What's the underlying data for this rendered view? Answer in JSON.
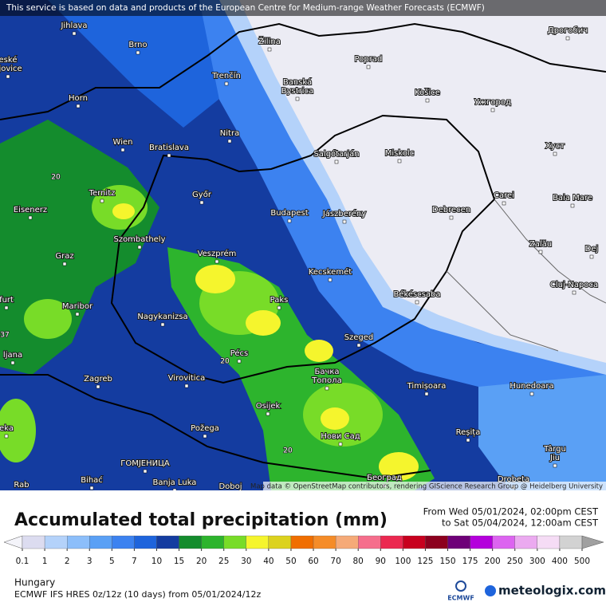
{
  "banner": "This service is based on data and products of the European Centre for Medium-range Weather Forecasts (ECMWF)",
  "attribution": "Map data © OpenStreetMap contributors, rendering GIScience Research Group @ Heidelberg University",
  "cities": [
    "Jihlava",
    "Brno",
    "Žilina",
    "Poprad",
    "Дрогобич",
    [
      "eské",
      "ějovice"
    ],
    "Trenčín",
    [
      "Banská",
      "Bystrica"
    ],
    "Košice",
    "Ужгород",
    "Horn",
    "Nitra",
    "Wien",
    "Bratislava",
    "Salgótarján",
    "Miskolc",
    "Хуст",
    "Ternitz",
    "Győr",
    "Budapest",
    "Jászberény",
    "Debrecen",
    "Carei",
    "Baia Mare",
    "Eisenerz",
    "Szombathely",
    "Zalău",
    "Graz",
    "Veszprém",
    "Kecskemét",
    "Dej",
    "Cluj-Napoca",
    "Paks",
    "Békéscsaba",
    "Maribor",
    "Nagykanizsa",
    "furt",
    "Szeged",
    "Pécs",
    "ljana",
    [
      "Бачка",
      "Топола"
    ],
    "Zagreb",
    "Virovitica",
    "Timișoara",
    "Hunedoara",
    "Osijek",
    "Požega",
    "Reșița",
    "Нови Сад",
    [
      "Târgu",
      "Jiu"
    ],
    "eka",
    "ГОМЈЕНИЦА",
    "Bihać",
    "Banja Luka",
    "Doboj",
    "Београд",
    "Drobeta",
    "Rab"
  ],
  "contour_labels": [
    "20",
    "20",
    "20",
    "37"
  ],
  "legend": {
    "title": "Accumulated total precipitation (mm)",
    "period": [
      "From Wed 05/01/2024, 02:00pm CEST",
      "to Sat 05/04/2024, 12:00am CEST"
    ],
    "ticks": [
      0.1,
      1,
      2,
      3,
      5,
      7,
      10,
      15,
      20,
      25,
      30,
      40,
      50,
      60,
      70,
      80,
      90,
      100,
      125,
      150,
      175,
      200,
      250,
      300,
      400,
      500
    ],
    "colors": [
      "#f4f4fa",
      "#dcdcf0",
      "#b4d2fa",
      "#8cbefa",
      "#5aa0f5",
      "#3c82f0",
      "#1e64dc",
      "#143ca0",
      "#148c2d",
      "#2db42d",
      "#78dc28",
      "#f5f52d",
      "#dcd21e",
      "#f06e00",
      "#f58c28",
      "#f5aa78",
      "#f56e8c",
      "#eb2850",
      "#c8001e",
      "#8c001e",
      "#6e0078",
      "#b400dc",
      "#dc64f0",
      "#ebaaf0",
      "#f5dcf5",
      "#d2d2d2",
      "#a0a0a0"
    ]
  },
  "footer": {
    "region": "Hungary",
    "model": "ECMWF IFS HRES 0z/12z (10 days) from 05/01/2024/12z",
    "logo_left": "ECMWF",
    "logo_right": "meteologix.com"
  }
}
